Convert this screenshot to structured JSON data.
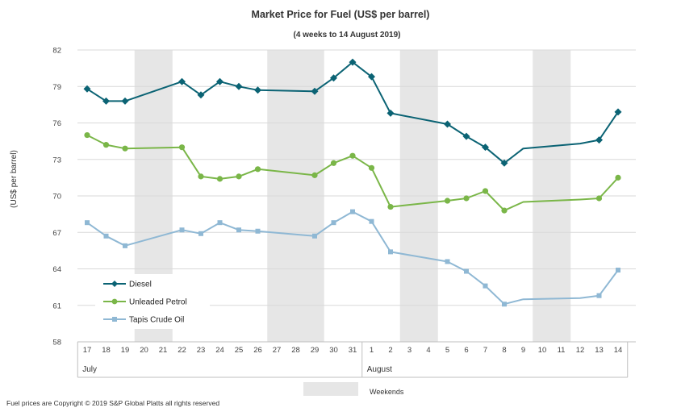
{
  "chart_data": {
    "type": "line",
    "title": "Market Price for Fuel (US$ per barrel)",
    "subtitle": "(4 weeks to 14 August 2019)",
    "ylabel": "(US$ per barrel)",
    "ylim": [
      58,
      82
    ],
    "yticks": [
      "58",
      "61",
      "64",
      "67",
      "70",
      "73",
      "76",
      "79",
      "82"
    ],
    "categories": [
      "17",
      "18",
      "19",
      "20",
      "21",
      "22",
      "23",
      "24",
      "25",
      "26",
      "27",
      "28",
      "29",
      "30",
      "31",
      "1",
      "2",
      "3",
      "4",
      "5",
      "6",
      "7",
      "8",
      "9",
      "10",
      "11",
      "12",
      "13",
      "14"
    ],
    "months": [
      {
        "label": "July",
        "start": 0,
        "end": 14
      },
      {
        "label": "August",
        "start": 15,
        "end": 28
      }
    ],
    "weekends": [
      [
        3,
        4
      ],
      [
        10,
        12
      ],
      [
        17,
        18
      ],
      [
        24,
        25
      ]
    ],
    "weekend_label": "Weekends",
    "series": [
      {
        "name": "Diesel",
        "color": "#0b6374",
        "marker": "diamond",
        "values": [
          78.8,
          77.8,
          77.8,
          null,
          null,
          79.4,
          78.3,
          79.4,
          79.0,
          78.7,
          null,
          null,
          78.6,
          79.7,
          81.0,
          79.8,
          76.8,
          null,
          null,
          75.9,
          74.9,
          74.0,
          72.7,
          null,
          null,
          null,
          null,
          74.6,
          76.9
        ]
      },
      {
        "name": "Unleaded Petrol",
        "color": "#7ab648",
        "marker": "circle",
        "values": [
          75.0,
          74.2,
          73.9,
          null,
          null,
          74.0,
          71.6,
          71.4,
          71.6,
          72.2,
          null,
          null,
          71.7,
          72.7,
          73.3,
          72.3,
          69.1,
          null,
          null,
          69.6,
          69.8,
          70.4,
          68.8,
          null,
          null,
          null,
          null,
          69.8,
          71.5
        ]
      },
      {
        "name": "Tapis Crude Oil",
        "color": "#8fb8d4",
        "marker": "square",
        "values": [
          67.8,
          66.7,
          65.9,
          null,
          null,
          67.2,
          66.9,
          67.8,
          67.2,
          67.1,
          null,
          null,
          66.7,
          67.8,
          68.7,
          67.9,
          65.4,
          null,
          null,
          64.6,
          63.8,
          62.6,
          61.1,
          null,
          null,
          null,
          null,
          61.8,
          63.9
        ]
      }
    ],
    "gap_connect": [
      {
        "series": 0,
        "from": 22,
        "mid": [
          [
            23,
            73.9
          ]
        ],
        "to": 27,
        "midpoints": [
          [
            26,
            74.3
          ]
        ]
      },
      {
        "series": 1,
        "from": 22,
        "mid": [
          [
            23,
            69.5
          ]
        ],
        "to": 27,
        "midpoints": [
          [
            26,
            69.7
          ]
        ]
      },
      {
        "series": 2,
        "from": 22,
        "mid": [
          [
            23,
            61.5
          ]
        ],
        "to": 27,
        "midpoints": [
          [
            26,
            61.6
          ]
        ]
      }
    ],
    "unmarked_points": [
      {
        "series": 0,
        "values": [
          [
            23,
            73.9
          ],
          [
            26,
            74.3
          ]
        ]
      },
      {
        "series": 1,
        "values": [
          [
            23,
            69.5
          ],
          [
            26,
            69.7
          ]
        ]
      },
      {
        "series": 2,
        "values": [
          [
            23,
            61.5
          ],
          [
            26,
            61.6
          ]
        ]
      }
    ]
  },
  "footer": "Fuel prices are Copyright © 2019 S&P Global Platts all rights reserved"
}
